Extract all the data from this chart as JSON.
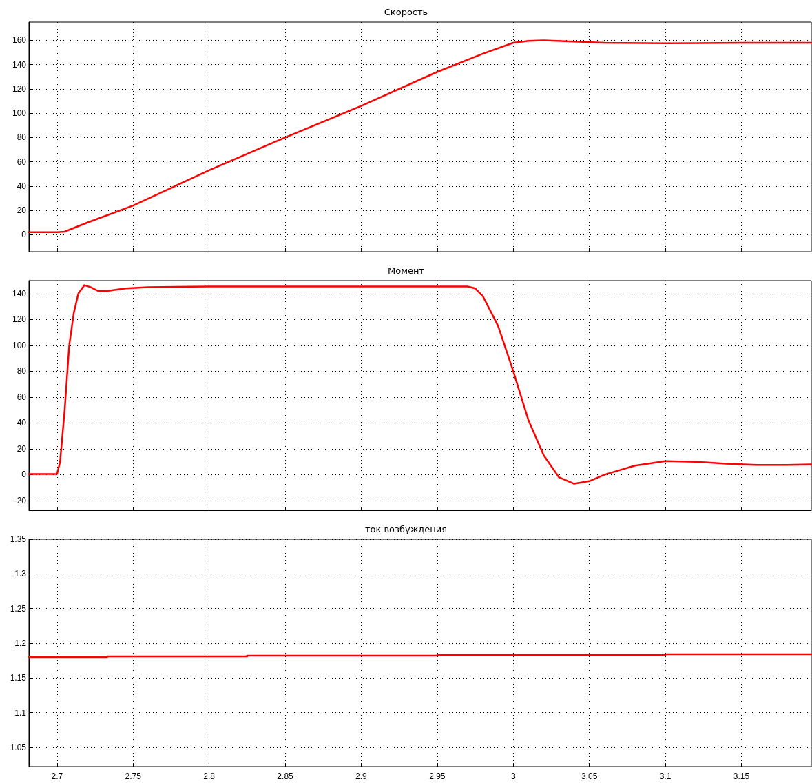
{
  "chart_data": [
    {
      "type": "line",
      "title": "Скорость",
      "x": [
        2.6815,
        2.7,
        2.705,
        2.71,
        2.72,
        2.75,
        2.8,
        2.85,
        2.9,
        2.95,
        2.98,
        3.0,
        3.01,
        3.02,
        3.04,
        3.06,
        3.1,
        3.15,
        3.196
      ],
      "series": [
        {
          "color": "#ff0000",
          "values": [
            2,
            2,
            2.5,
            5,
            10,
            24,
            53,
            80,
            106,
            134,
            149,
            158,
            159.5,
            160,
            159,
            158,
            157.5,
            158,
            158
          ]
        }
      ],
      "xlim": [
        2.6815,
        3.196
      ],
      "xticks": [
        2.7,
        2.75,
        2.8,
        2.85,
        2.9,
        2.95,
        3,
        3.05,
        3.1,
        3.15
      ],
      "ylim": [
        -14,
        175
      ],
      "yticks": [
        0,
        20,
        40,
        60,
        80,
        100,
        120,
        140,
        160
      ],
      "tick_labels": "y",
      "grid": true,
      "marker": "none",
      "line_style": "solid"
    },
    {
      "type": "line",
      "title": "Момент",
      "x": [
        2.6815,
        2.7,
        2.702,
        2.705,
        2.708,
        2.711,
        2.714,
        2.718,
        2.722,
        2.727,
        2.733,
        2.745,
        2.76,
        2.8,
        2.97,
        2.975,
        2.98,
        2.99,
        3.0,
        3.01,
        3.02,
        3.03,
        3.04,
        3.05,
        3.06,
        3.08,
        3.1,
        3.12,
        3.14,
        3.16,
        3.18,
        3.196
      ],
      "series": [
        {
          "color": "#ff0000",
          "values": [
            0.5,
            0.5,
            10,
            50,
            100,
            125,
            140,
            146.5,
            145,
            142,
            142,
            144,
            145,
            145.5,
            145.5,
            144,
            138,
            115,
            80,
            42,
            15,
            -2,
            -7,
            -5,
            0,
            7,
            10.5,
            10,
            8.5,
            7.5,
            7.5,
            8
          ]
        }
      ],
      "xlim": [
        2.6815,
        3.196
      ],
      "xticks": [
        2.7,
        2.75,
        2.8,
        2.85,
        2.9,
        2.95,
        3,
        3.05,
        3.1,
        3.15
      ],
      "ylim": [
        -27.5,
        150
      ],
      "yticks": [
        -20,
        0,
        20,
        40,
        60,
        80,
        100,
        120,
        140
      ],
      "tick_labels": "y",
      "grid": true,
      "marker": "none",
      "line_style": "solid"
    },
    {
      "type": "step",
      "title": "ток возбуждения",
      "x": [
        2.6815,
        2.733,
        2.825,
        2.95,
        3.1,
        3.196
      ],
      "series": [
        {
          "color": "#ff0000",
          "values": [
            1.18,
            1.181,
            1.182,
            1.183,
            1.184,
            1.184
          ]
        }
      ],
      "xlim": [
        2.6815,
        3.196
      ],
      "xticks": [
        2.7,
        2.75,
        2.8,
        2.85,
        2.9,
        2.95,
        3,
        3.05,
        3.1,
        3.15
      ],
      "ylim": [
        1.022,
        1.35
      ],
      "yticks": [
        1.05,
        1.1,
        1.15,
        1.2,
        1.25,
        1.3,
        1.35
      ],
      "grid": true,
      "marker": "none",
      "line_style": "solid"
    }
  ]
}
